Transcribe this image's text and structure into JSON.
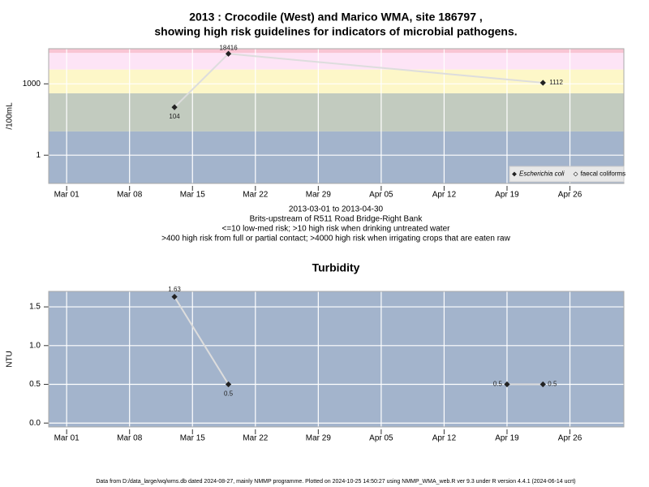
{
  "title": [
    "2013 : Crocodile (West) and Marico WMA, site 186797 ,",
    "showing high risk guidelines for indicators of microbial pathogens."
  ],
  "footer": "Data from D:/data_large/wq/wms.db dated 2024-08-27, mainly NMMP programme. Plotted on 2024-10-25 14:50:27 using NMMP_WMA_web.R ver 9.3 under R version 4.4.1 (2024-06-14 ucrt)",
  "chart_data": [
    {
      "type": "line",
      "y_label": "/100mL",
      "log_scale": true,
      "notes": [
        "2013-03-01 to 2013-04-30",
        "Brits-upstream of R511 Road Bridge-Right Bank",
        "<=10 low-med risk; >10 high risk when drinking untreated water",
        ">400 high risk from full or partial contact; >4000 high risk when irrigating crops that are eaten raw"
      ],
      "x": [
        "Mar 13",
        "Mar 19",
        "Apr 23"
      ],
      "series": [
        {
          "name": "Escherichia coli",
          "color": "#222222",
          "marker_fill": "#222222",
          "line_color": "#dddddd",
          "values": [
            104,
            18416,
            1112
          ]
        },
        {
          "name": "faecal coliforms",
          "color": "#222222",
          "marker_fill": "#ffffff",
          "line_color": "#dddddd",
          "values": [
            null,
            null,
            null
          ]
        }
      ],
      "bands": [
        {
          "from": 0.065,
          "to": 10,
          "color": "#a3b4cc"
        },
        {
          "from": 10,
          "to": 400,
          "color": "#c2cbbf"
        },
        {
          "from": 400,
          "to": 4000,
          "color": "#fdf7c8"
        },
        {
          "from": 4000,
          "to": 20000,
          "color": "#fde4f6"
        },
        {
          "from": 20000,
          "to": 30000,
          "color": "#f9c5d4"
        }
      ],
      "xlim": [
        "Feb 27",
        "May 02"
      ],
      "xticks": [
        "Mar 01",
        "Mar 08",
        "Mar 15",
        "Mar 22",
        "Mar 29",
        "Apr 05",
        "Apr 12",
        "Apr 19",
        "Apr 26"
      ],
      "ylim": [
        0.065,
        30000
      ],
      "yticks": [
        1,
        1000
      ],
      "grid": true,
      "legend": "bottom right"
    },
    {
      "type": "line",
      "title": "Turbidity",
      "y_label": "NTU",
      "log_scale": false,
      "x": [
        "Mar 13",
        "Mar 19",
        null,
        "Apr 19",
        "Apr 23"
      ],
      "series": [
        {
          "color": "#222222",
          "marker_fill": "#222222",
          "line_color": "#dddddd",
          "values": [
            1.63,
            0.5,
            null,
            0.5,
            0.5
          ]
        }
      ],
      "background": "#a3b4cc",
      "xlim": [
        "Feb 27",
        "May 02"
      ],
      "xticks": [
        "Mar 01",
        "Mar 08",
        "Mar 15",
        "Mar 22",
        "Mar 29",
        "Apr 05",
        "Apr 12",
        "Apr 19",
        "Apr 26"
      ],
      "ylim": [
        -0.05,
        1.7
      ],
      "yticks": [
        {
          "value": 0,
          "label": "0.0"
        },
        0.5,
        {
          "value": 1,
          "label": "1.0"
        },
        1.5
      ],
      "grid": true
    }
  ]
}
